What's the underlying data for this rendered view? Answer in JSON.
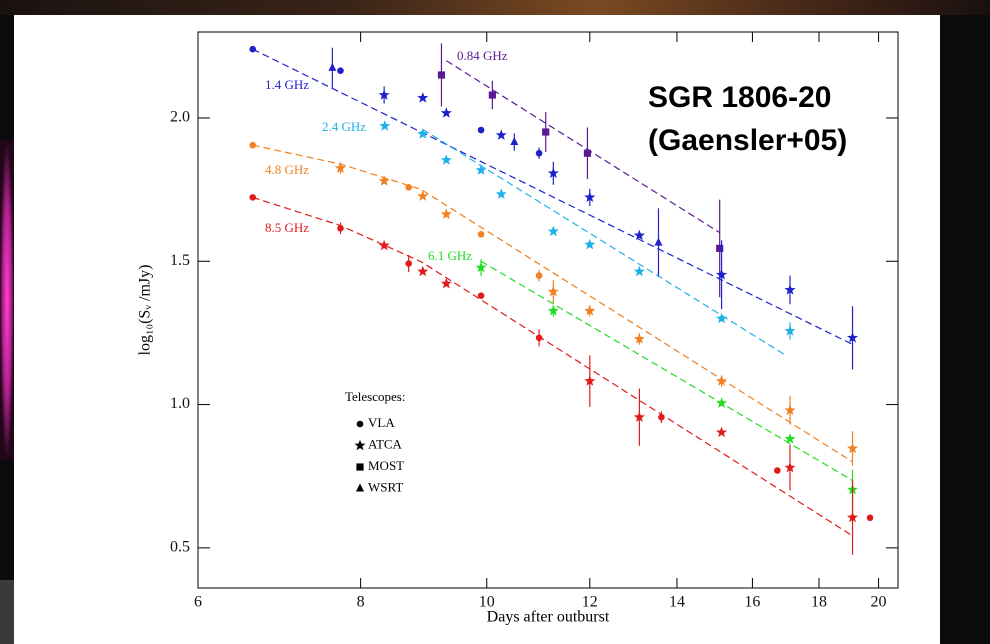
{
  "chart_data": {
    "type": "scatter",
    "title": "SGR 1806-20",
    "subtitle": "(Gaensler+05)",
    "xlabel": "Days after outburst",
    "ylabel": "log₁₀(Sᵥ /mJy)",
    "xscale": "log",
    "xlim": [
      6,
      20.7
    ],
    "ylim": [
      0.36,
      2.3
    ],
    "xticks": [
      6,
      8,
      10,
      12,
      14,
      16,
      18,
      20
    ],
    "yticks": [
      0.5,
      {
        "value": 1.0,
        "label": "1.0"
      },
      1.5,
      {
        "value": 2.0,
        "label": "2.0"
      }
    ],
    "legend": {
      "title": "Telescopes:",
      "entries": [
        {
          "label": "VLA",
          "marker": "circle"
        },
        {
          "label": "ATCA",
          "marker": "star"
        },
        {
          "label": "MOST",
          "marker": "square"
        },
        {
          "label": "WSRT",
          "marker": "triangle"
        }
      ]
    },
    "series": [
      {
        "name": "0.84 GHz",
        "color": "#5b1a92",
        "x": [
          9.23,
          10.1,
          11.1,
          11.95,
          15.1
        ],
        "values": [
          2.15,
          2.08,
          1.951,
          1.877,
          1.545
        ],
        "errors": [
          0.11,
          0.05,
          0.07,
          0.09,
          0.17
        ],
        "markers": [
          "square",
          "square",
          "square",
          "square",
          "square"
        ],
        "fit": {
          "x": [
            9.31,
            15.1
          ],
          "y": [
            2.2,
            1.6
          ]
        }
      },
      {
        "name": "1.4 GHz",
        "color": "#1f22cc",
        "x": [
          6.61,
          7.61,
          7.72,
          8.34,
          8.93,
          9.31,
          9.9,
          10.26,
          10.5,
          10.97,
          11.25,
          12.0,
          13.1,
          13.55,
          15.15,
          17.1,
          19.1
        ],
        "values": [
          2.24,
          2.175,
          2.165,
          2.08,
          2.07,
          2.017,
          1.958,
          1.94,
          1.916,
          1.877,
          1.807,
          1.723,
          1.59,
          1.565,
          1.453,
          1.4,
          1.233
        ],
        "errors": [
          null,
          0.07,
          null,
          0.03,
          null,
          null,
          null,
          null,
          0.03,
          0.02,
          0.04,
          0.03,
          null,
          0.12,
          0.12,
          0.05,
          0.11
        ],
        "markers": [
          "circle",
          "triangle",
          "circle",
          "star",
          "star",
          "star",
          "circle",
          "star",
          "triangle",
          "circle",
          "star",
          "star",
          "star",
          "triangle",
          "star",
          "star",
          "star"
        ],
        "fit": {
          "x": [
            6.61,
            19.1
          ],
          "y": [
            2.24,
            1.21
          ]
        }
      },
      {
        "name": "2.4 GHz",
        "color": "#1fb0e8",
        "x": [
          8.35,
          8.93,
          9.31,
          9.9,
          10.26,
          11.25,
          12.0,
          13.1,
          15.15,
          17.1
        ],
        "values": [
          1.972,
          1.944,
          1.853,
          1.818,
          1.734,
          1.604,
          1.558,
          1.464,
          1.3,
          1.257
        ],
        "errors": [
          null,
          null,
          null,
          null,
          null,
          null,
          null,
          null,
          null,
          0.03
        ],
        "markers": [
          "star",
          "star",
          "star",
          "star",
          "star",
          "star",
          "star",
          "star",
          "star",
          "star"
        ],
        "fit": {
          "x": [
            8.93,
            17.0
          ],
          "y": [
            1.96,
            1.17
          ]
        }
      },
      {
        "name": "4.8 GHz",
        "color": "#f08020",
        "x": [
          6.61,
          7.72,
          8.34,
          8.71,
          8.93,
          9.31,
          9.9,
          10.97,
          11.25,
          12.0,
          13.1,
          15.15,
          17.1,
          19.1
        ],
        "values": [
          1.905,
          1.825,
          1.78,
          1.758,
          1.727,
          1.664,
          1.594,
          1.45,
          1.394,
          1.327,
          1.229,
          1.082,
          0.98,
          0.847
        ],
        "errors": [
          null,
          0.02,
          null,
          null,
          null,
          null,
          null,
          0.02,
          0.04,
          0.02,
          0.02,
          0.02,
          0.05,
          0.06
        ],
        "markers": [
          "circle",
          "star",
          "star",
          "circle",
          "star",
          "star",
          "circle",
          "circle",
          "star",
          "star",
          "star",
          "star",
          "star",
          "star"
        ],
        "fit": {
          "x": [
            6.61,
            7.72,
            8.9,
            19.1
          ],
          "y": [
            1.905,
            1.839,
            1.751,
            0.8
          ]
        }
      },
      {
        "name": "6.1 GHz",
        "color": "#22dd22",
        "x": [
          9.9,
          11.25,
          15.15,
          17.1,
          19.1
        ],
        "values": [
          1.478,
          1.327,
          1.005,
          0.88,
          0.703
        ],
        "errors": [
          0.03,
          0.02,
          null,
          null,
          0.07
        ],
        "markers": [
          "star",
          "star",
          "star",
          "star",
          "star"
        ],
        "fit": {
          "x": [
            9.9,
            19.1
          ],
          "y": [
            1.5,
            0.735
          ]
        }
      },
      {
        "name": "8.5 GHz",
        "color": "#e01b1b",
        "x": [
          6.61,
          7.72,
          8.34,
          8.71,
          8.93,
          9.31,
          9.9,
          10.97,
          12.0,
          13.1,
          13.62,
          15.15,
          16.72,
          17.1,
          19.1,
          19.7
        ],
        "values": [
          1.723,
          1.615,
          1.555,
          1.492,
          1.464,
          1.422,
          1.38,
          1.233,
          1.082,
          0.956,
          0.956,
          0.903,
          0.77,
          0.78,
          0.606,
          0.605
        ],
        "errors": [
          null,
          0.02,
          null,
          0.03,
          null,
          null,
          null,
          0.03,
          0.09,
          0.1,
          0.02,
          null,
          null,
          0.08,
          0.13,
          null
        ],
        "markers": [
          "circle",
          "circle",
          "star",
          "circle",
          "star",
          "star",
          "circle",
          "circle",
          "star",
          "star",
          "circle",
          "star",
          "circle",
          "star",
          "star",
          "circle"
        ],
        "fit": {
          "x": [
            6.61,
            7.72,
            8.9,
            19.1
          ],
          "y": [
            1.723,
            1.625,
            1.499,
            0.542
          ]
        }
      }
    ]
  }
}
